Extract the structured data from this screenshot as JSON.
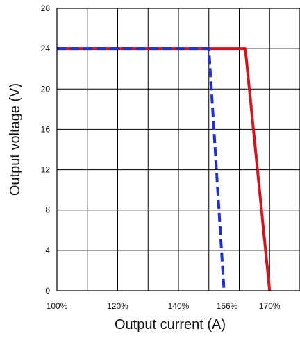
{
  "chart_data": {
    "type": "line",
    "xlabel": "Output current (A)",
    "ylabel": "Output voltage (V)",
    "x_ticks": [
      {
        "value": 100,
        "label": "100%"
      },
      {
        "value": 120,
        "label": "120%"
      },
      {
        "value": 140,
        "label": "140%"
      },
      {
        "value": 156,
        "label": "156%"
      },
      {
        "value": 170,
        "label": "170%"
      }
    ],
    "y_ticks": [
      {
        "value": 0,
        "label": "0"
      },
      {
        "value": 4,
        "label": "4"
      },
      {
        "value": 8,
        "label": "8"
      },
      {
        "value": 12,
        "label": "12"
      },
      {
        "value": 16,
        "label": "16"
      },
      {
        "value": 20,
        "label": "20"
      },
      {
        "value": 24,
        "label": "24"
      },
      {
        "value": 28,
        "label": "28"
      }
    ],
    "x_grid_values": [
      100,
      110,
      120,
      130,
      140,
      150,
      160,
      170,
      180
    ],
    "y_grid_values": [
      0,
      4,
      8,
      12,
      16,
      20,
      24,
      28
    ],
    "xlim": [
      100,
      180
    ],
    "ylim": [
      0,
      28
    ],
    "grid": true,
    "series": [
      {
        "color": "#d4141d",
        "dash": "solid",
        "points": [
          {
            "x": 100,
            "y": 24
          },
          {
            "x": 162,
            "y": 24
          },
          {
            "x": 170,
            "y": 0
          }
        ]
      },
      {
        "color": "#1f2fd6",
        "dash": "dashed",
        "points": [
          {
            "x": 100,
            "y": 24
          },
          {
            "x": 150,
            "y": 24
          },
          {
            "x": 155,
            "y": 0
          }
        ]
      }
    ]
  }
}
